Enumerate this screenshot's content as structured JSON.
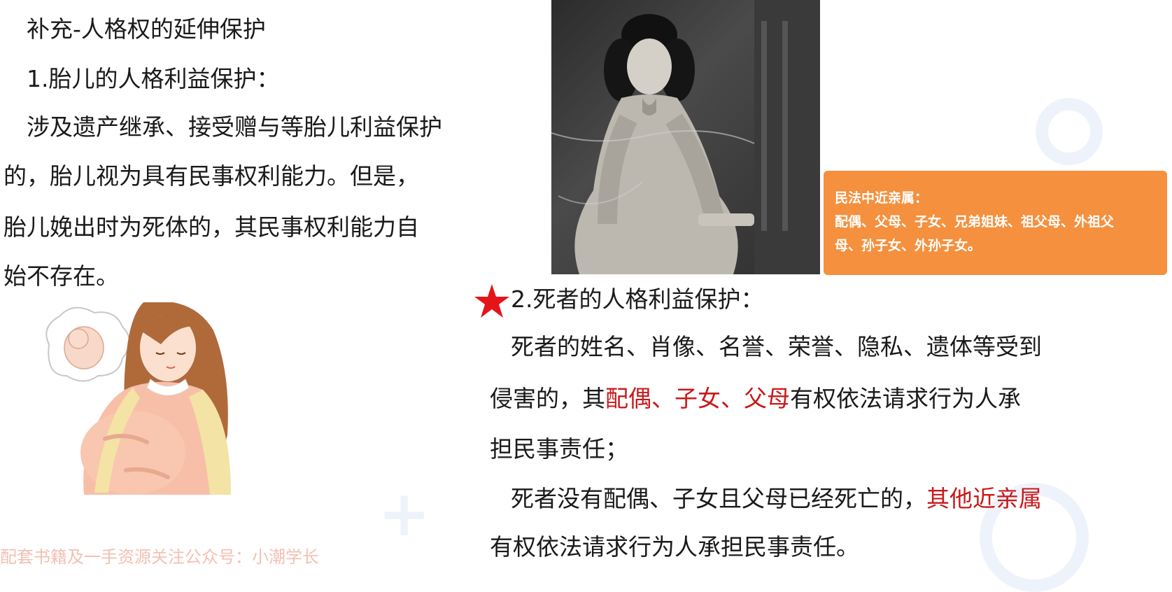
{
  "left": {
    "title": "补充-人格权的延伸保护",
    "subtitle": "1.胎儿的人格利益保护：",
    "para_lines": [
      "涉及遗产继承、接受赠与等胎儿利益保护",
      "的，胎儿视为具有民事权利能力。但是，",
      "胎儿娩出时为死体的，其民事权利能力自",
      "始不存在。"
    ]
  },
  "callout": {
    "title": "民法中近亲属：",
    "line1": "配偶、父母、子女、兄弟姐妹、祖父母、外祖父",
    "line2": "母、孙子女、外孙子女。"
  },
  "right": {
    "heading": "2.死者的人格利益保护：",
    "p1_l1": "死者的姓名、肖像、名誉、荣誉、隐私、遗体等受到",
    "p1_l2_a": "侵害的，其",
    "p1_l2_red": "配偶、子女、父母",
    "p1_l2_b": "有权依法请求行为人承",
    "p1_l3": "担民事责任；",
    "p2_l1_a": "死者没有配偶、子女且父母已经死亡的，",
    "p2_l1_red": "其他近亲属",
    "p2_l2": "有权依法请求行为人承担民事责任。"
  },
  "watermark": "配套书籍及一手资源关注公众号：小潮学长",
  "colors": {
    "accent_red": "#c8191b",
    "callout_bg": "#f5903e",
    "star": "#e3151a"
  }
}
